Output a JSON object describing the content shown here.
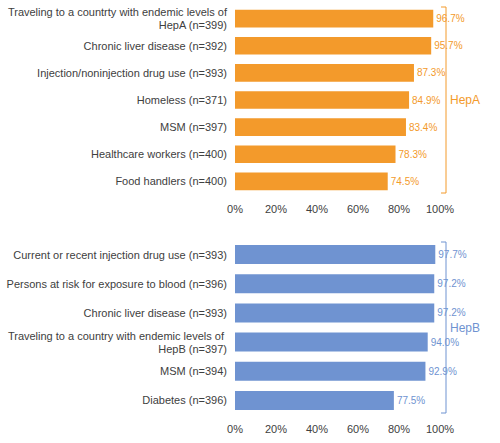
{
  "chart_data": [
    {
      "type": "bar",
      "orientation": "horizontal",
      "annotation": "HepA",
      "color": "#F39A2B",
      "categories": [
        "Traveling to a countrty with endemic levels of HepA (n=399)",
        "Chronic liver disease (n=392)",
        "Injection/noninjection drug use (n=393)",
        "Homeless (n=371)",
        "MSM (n=397)",
        "Healthcare workers (n=400)",
        "Food handlers (n=400)"
      ],
      "values": [
        96.7,
        95.7,
        87.3,
        84.9,
        83.4,
        78.3,
        74.5
      ],
      "value_labels": [
        "96.7%",
        "95.7%",
        "87.3%",
        "84.9%",
        "83.4%",
        "78.3%",
        "74.5%"
      ],
      "data_labels": true,
      "xlim": [
        0,
        100
      ],
      "xticks": [
        {
          "value": 0,
          "label": "0%"
        },
        {
          "value": 20,
          "label": "20%"
        },
        {
          "value": 40,
          "label": "40%"
        },
        {
          "value": 60,
          "label": "60%"
        },
        {
          "value": 80,
          "label": "80%"
        },
        {
          "value": 100,
          "label": "100%"
        }
      ],
      "grid": false
    },
    {
      "type": "bar",
      "orientation": "horizontal",
      "annotation": "HepB",
      "color": "#6F93D1",
      "categories": [
        "Current or recent injection drug use (n=393)",
        "Persons at risk for exposure to blood (n=396)",
        "Chronic liver disease (n=393)",
        "Traveling to a country with endemic levels of HepB (n=397)",
        "MSM (n=394)",
        "Diabetes (n=396)"
      ],
      "values": [
        97.7,
        97.2,
        97.2,
        94.0,
        92.9,
        77.5
      ],
      "value_labels": [
        "97.7%",
        "97.2%",
        "97.2%",
        "94.0%",
        "92.9%",
        "77.5%"
      ],
      "data_labels": true,
      "xlim": [
        0,
        100
      ],
      "xticks": [
        {
          "value": 0,
          "label": "0%"
        },
        {
          "value": 20,
          "label": "20%"
        },
        {
          "value": 40,
          "label": "40%"
        },
        {
          "value": 60,
          "label": "60%"
        },
        {
          "value": 80,
          "label": "80%"
        },
        {
          "value": 100,
          "label": "100%"
        }
      ],
      "grid": false
    }
  ]
}
